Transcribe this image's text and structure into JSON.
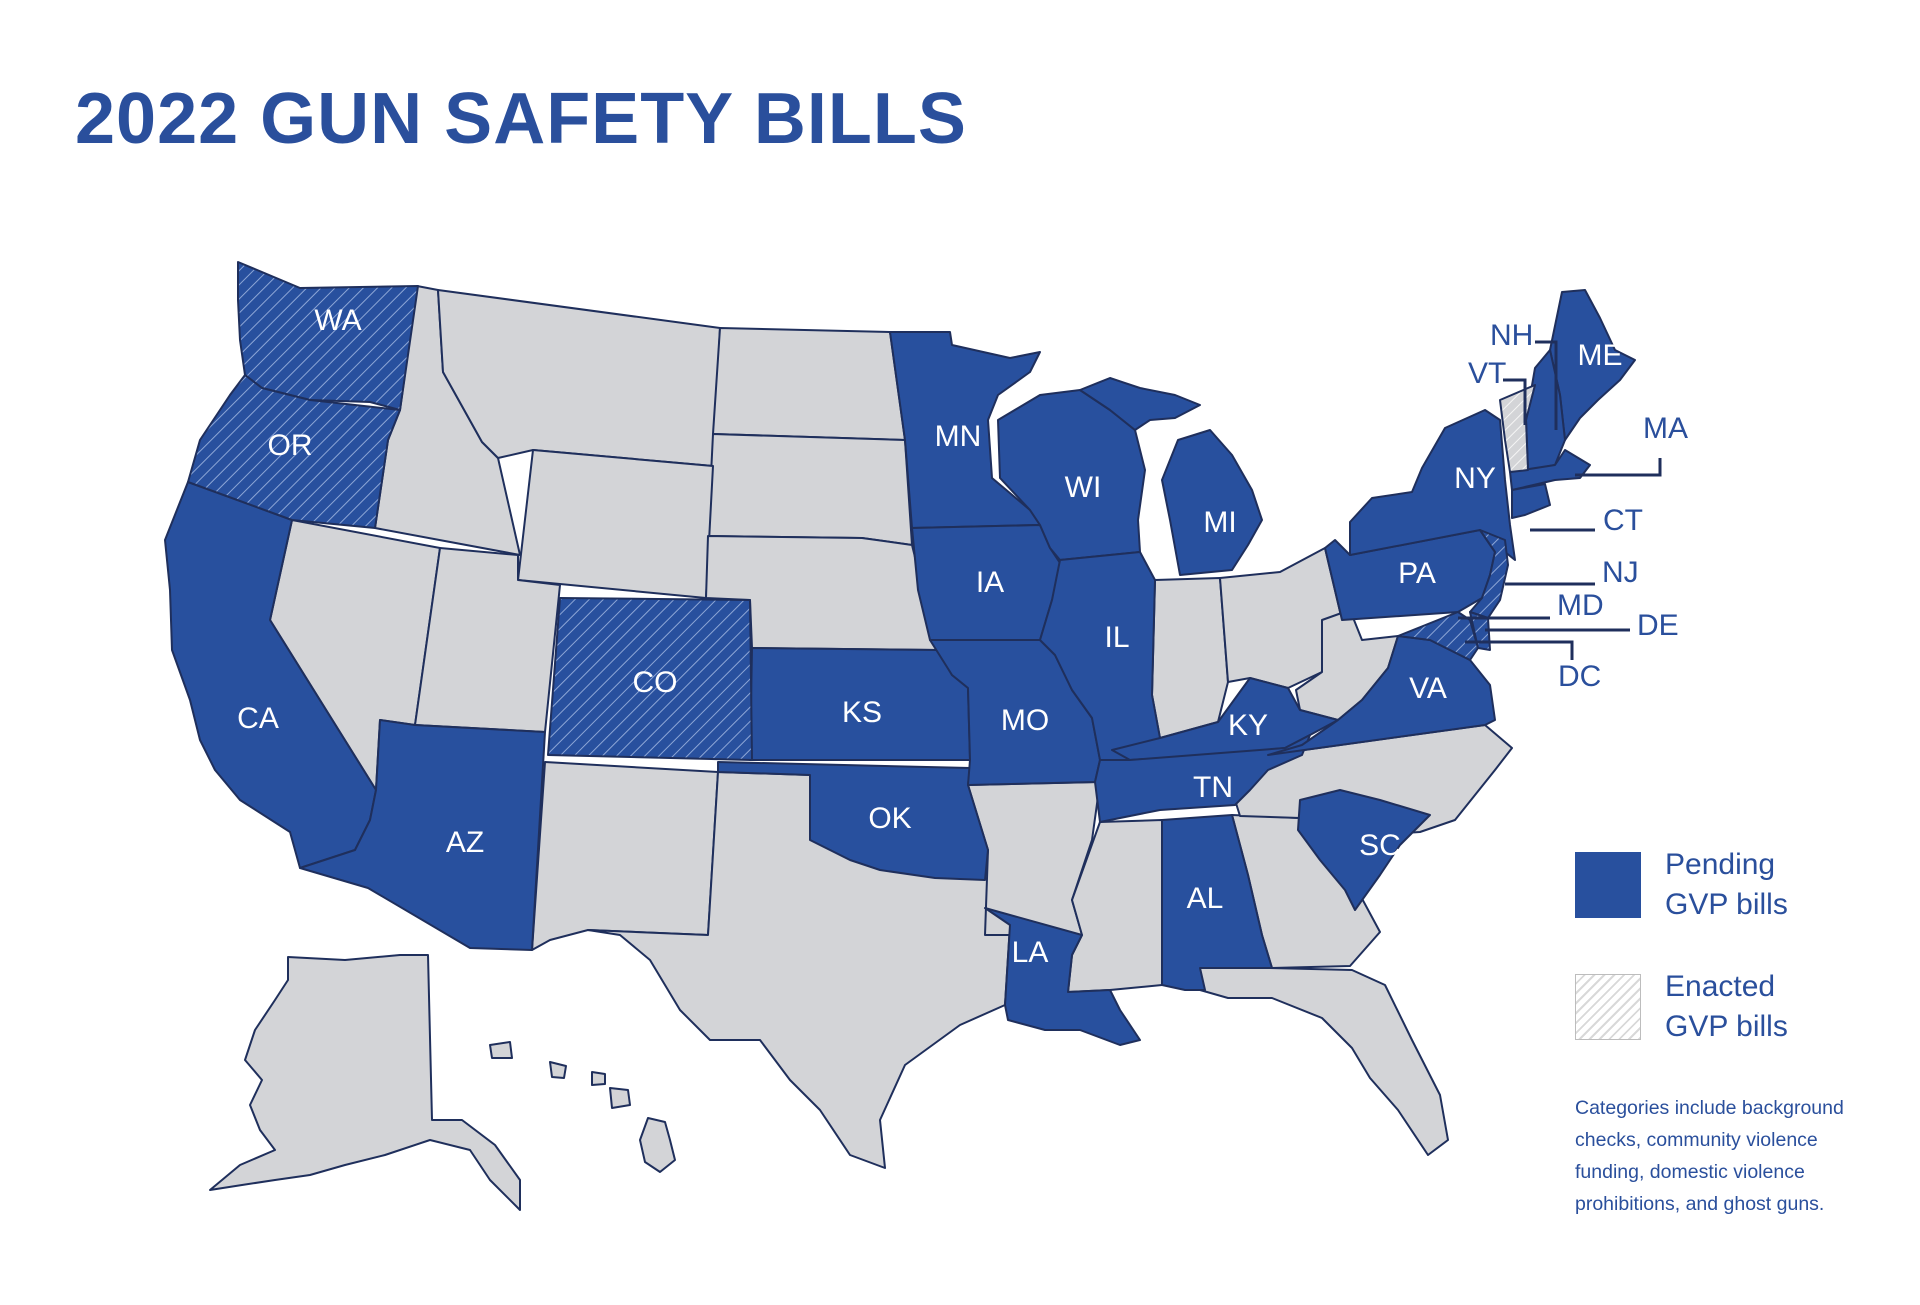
{
  "title": "2022 GUN SAFETY BILLS",
  "colors": {
    "pending": "#28509e",
    "other": "#d3d4d7",
    "accent": "#2a4f9c",
    "border": "#1f2f5c"
  },
  "states": {
    "WA": {
      "label": "WA",
      "status": "pending-enacted"
    },
    "OR": {
      "label": "OR",
      "status": "pending-enacted"
    },
    "CA": {
      "label": "CA",
      "status": "pending"
    },
    "AZ": {
      "label": "AZ",
      "status": "pending"
    },
    "CO": {
      "label": "CO",
      "status": "pending-enacted"
    },
    "KS": {
      "label": "KS",
      "status": "pending"
    },
    "OK": {
      "label": "OK",
      "status": "pending"
    },
    "MN": {
      "label": "MN",
      "status": "pending"
    },
    "IA": {
      "label": "IA",
      "status": "pending"
    },
    "MO": {
      "label": "MO",
      "status": "pending"
    },
    "LA": {
      "label": "LA",
      "status": "pending"
    },
    "WI": {
      "label": "WI",
      "status": "pending"
    },
    "IL": {
      "label": "IL",
      "status": "pending"
    },
    "MI": {
      "label": "MI",
      "status": "pending"
    },
    "KY": {
      "label": "KY",
      "status": "pending"
    },
    "TN": {
      "label": "TN",
      "status": "pending"
    },
    "AL": {
      "label": "AL",
      "status": "pending"
    },
    "SC": {
      "label": "SC",
      "status": "pending"
    },
    "VA": {
      "label": "VA",
      "status": "pending"
    },
    "PA": {
      "label": "PA",
      "status": "pending"
    },
    "NY": {
      "label": "NY",
      "status": "pending"
    },
    "ME": {
      "label": "ME",
      "status": "pending"
    },
    "NH": {
      "label": "NH",
      "status": "pending"
    },
    "VT": {
      "label": "VT",
      "status": "enacted"
    },
    "MA": {
      "label": "MA",
      "status": "pending"
    },
    "CT": {
      "label": "CT",
      "status": "pending"
    },
    "NJ": {
      "label": "NJ",
      "status": "pending-enacted"
    },
    "MD": {
      "label": "MD",
      "status": "pending-enacted"
    },
    "DE": {
      "label": "DE",
      "status": "pending-enacted"
    },
    "DC": {
      "label": "DC",
      "status": "pending"
    }
  },
  "legend": {
    "pending": "Pending GVP bills",
    "enacted": "Enacted GVP bills"
  },
  "note": "Categories include background checks, community violence funding, domestic violence prohibitions, and ghost guns."
}
